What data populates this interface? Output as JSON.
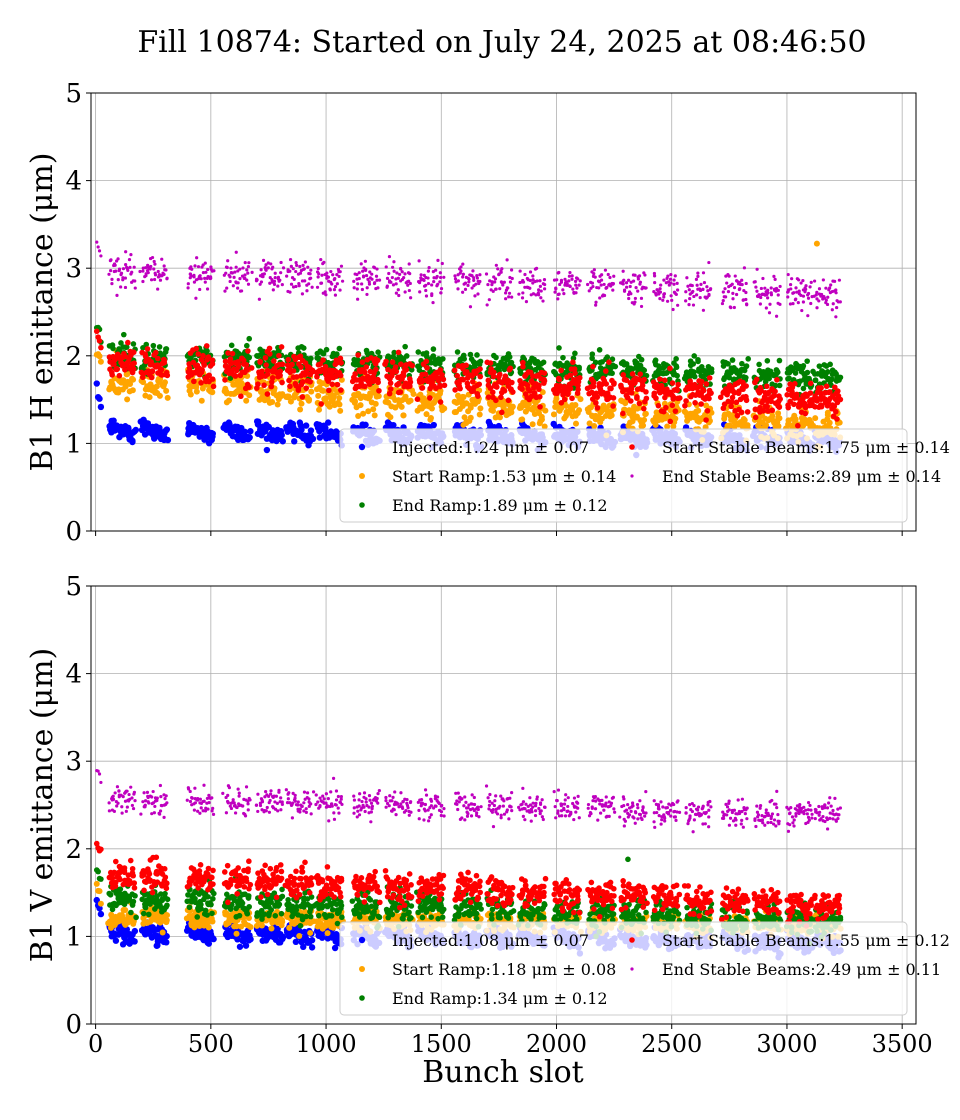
{
  "figure": {
    "title": "Fill 10874: Started on July 24, 2025 at 08:46:50",
    "xlabel": "Bunch slot"
  },
  "chart_data": [
    {
      "type": "scatter",
      "ylabel": "B1 H emittance (μm)",
      "xlim": [
        -20,
        3560
      ],
      "ylim": [
        0,
        5
      ],
      "xticks": [
        0,
        500,
        1000,
        1500,
        2000,
        2500,
        3000,
        3500
      ],
      "yticks": [
        0,
        1,
        2,
        3,
        4,
        5
      ],
      "grid": true,
      "legend_position": "bottom-right",
      "trains_start_slot": [
        60,
        200,
        400,
        560,
        700,
        830,
        960,
        1120,
        1260,
        1400,
        1560,
        1700,
        1840,
        1990,
        2140,
        2280,
        2420,
        2560,
        2720,
        2860,
        3000,
        3120
      ],
      "series": [
        {
          "name": "Injected",
          "legend_label": "Injected:1.24 μm ± 0.07",
          "color": "#0000ff",
          "mean": 1.24,
          "std": 0.07,
          "base_level": 1.2,
          "first_slot_value": 1.6,
          "point_radius": 3.2
        },
        {
          "name": "Start Ramp",
          "legend_label": "Start Ramp:1.53 μm ± 0.14",
          "color": "#ffa500",
          "mean": 1.53,
          "std": 0.14,
          "base_level": 1.72,
          "last_slot_value": 1.2,
          "outlier": [
            3130,
            3.28
          ],
          "point_radius": 3.0
        },
        {
          "name": "End Ramp",
          "legend_label": "End Ramp:1.89 μm ± 0.12",
          "color": "#008000",
          "mean": 1.89,
          "std": 0.12,
          "base_level": 2.0,
          "last_slot_value": 1.75,
          "point_radius": 2.8
        },
        {
          "name": "Start Stable Beams",
          "legend_label": "Start Stable Beams:1.75 μm ± 0.14",
          "color": "#ff0000",
          "mean": 1.75,
          "std": 0.14,
          "base_level": 1.9,
          "last_slot_value": 1.5,
          "point_radius": 2.8
        },
        {
          "name": "End Stable Beams",
          "legend_label": "End Stable Beams:2.89 μm ± 0.14",
          "color": "#bf00bf",
          "mean": 2.89,
          "std": 0.14,
          "base_level": 2.95,
          "last_slot_value": 2.72,
          "point_radius": 1.6
        }
      ]
    },
    {
      "type": "scatter",
      "ylabel": "B1 V emittance (μm)",
      "xlabel": "Bunch slot",
      "xlim": [
        -20,
        3560
      ],
      "ylim": [
        0,
        5
      ],
      "xticks": [
        0,
        500,
        1000,
        1500,
        2000,
        2500,
        3000,
        3500
      ],
      "yticks": [
        0,
        1,
        2,
        3,
        4,
        5
      ],
      "grid": true,
      "legend_position": "bottom-right",
      "trains_start_slot": [
        60,
        200,
        400,
        560,
        700,
        830,
        960,
        1120,
        1260,
        1400,
        1560,
        1700,
        1840,
        1990,
        2140,
        2280,
        2420,
        2560,
        2720,
        2860,
        3000,
        3120
      ],
      "series": [
        {
          "name": "Injected",
          "legend_label": "Injected:1.08 μm ± 0.07",
          "color": "#0000ff",
          "mean": 1.08,
          "std": 0.07,
          "base_level": 1.1,
          "first_slot_value": 1.38,
          "point_radius": 3.2
        },
        {
          "name": "Start Ramp",
          "legend_label": "Start Ramp:1.18 μm ± 0.08",
          "color": "#ffa500",
          "mean": 1.18,
          "std": 0.08,
          "base_level": 1.22,
          "last_slot_value": 1.12,
          "point_radius": 3.0
        },
        {
          "name": "End Ramp",
          "legend_label": "End Ramp:1.34 μm ± 0.12",
          "color": "#008000",
          "mean": 1.34,
          "std": 0.12,
          "base_level": 1.42,
          "last_slot_value": 1.18,
          "outlier": [
            2310,
            1.88
          ],
          "point_radius": 2.8
        },
        {
          "name": "Start Stable Beams",
          "legend_label": "Start Stable Beams:1.55 μm ± 0.12",
          "color": "#ff0000",
          "mean": 1.55,
          "std": 0.12,
          "base_level": 1.7,
          "last_slot_value": 1.35,
          "point_radius": 2.8
        },
        {
          "name": "End Stable Beams",
          "legend_label": "End Stable Beams:2.49 μm ± 0.11",
          "color": "#bf00bf",
          "mean": 2.49,
          "std": 0.11,
          "base_level": 2.55,
          "last_slot_value": 2.4,
          "point_radius": 1.6
        }
      ]
    }
  ]
}
